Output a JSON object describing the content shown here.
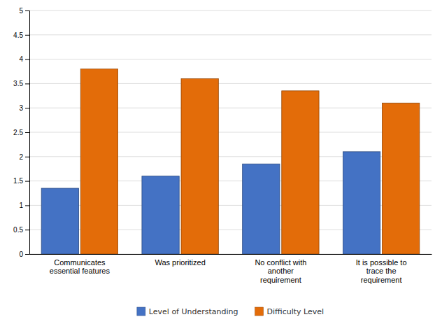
{
  "chart_data": {
    "type": "bar",
    "categories": [
      "Communicates\nessential features",
      "Was prioritized",
      "No conflict with\nanother\nrequirement",
      "It is possible to\ntrace the\nrequirement"
    ],
    "series": [
      {
        "name": "Level of Understanding",
        "color": "#4472C4",
        "values": [
          1.35,
          1.6,
          1.85,
          2.1
        ]
      },
      {
        "name": "Difficulty Level",
        "color": "#E36C09",
        "values": [
          3.8,
          3.6,
          3.35,
          3.1
        ]
      }
    ],
    "ylim": [
      0,
      5
    ],
    "yticks": [
      0,
      0.5,
      1,
      1.5,
      2,
      2.5,
      3,
      3.5,
      4,
      4.5,
      5
    ],
    "grid": true,
    "legend": "bottom"
  }
}
